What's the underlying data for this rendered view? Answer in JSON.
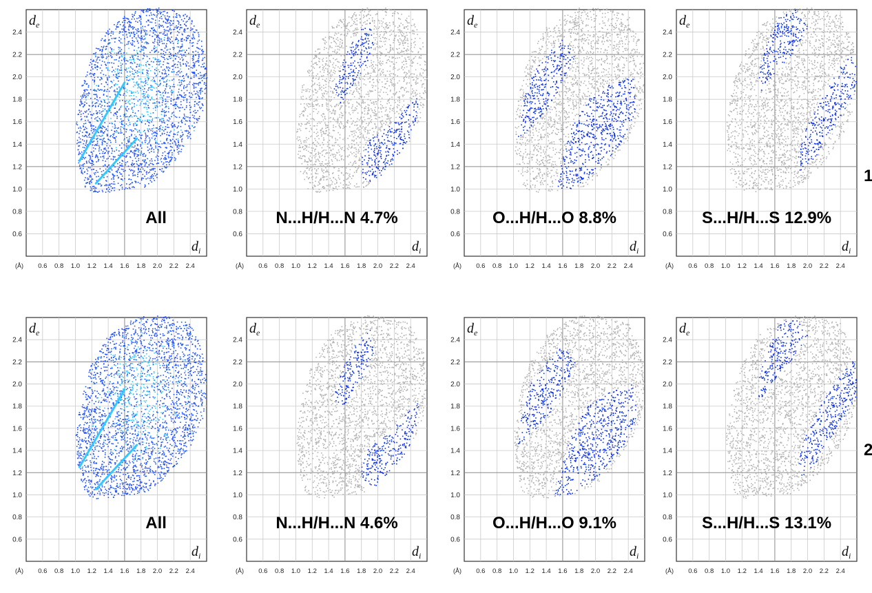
{
  "figure": {
    "y_axis_name": "d",
    "y_axis_sub": "e",
    "x_axis_name": "d",
    "x_axis_sub": "i",
    "unit_label": "(Å)",
    "x_ticks": [
      "0.6",
      "0.8",
      "1.0",
      "1.2",
      "1.4",
      "1.6",
      "1.8",
      "2.0",
      "2.2",
      "2.4"
    ],
    "y_ticks": [
      "0.6",
      "0.8",
      "1.0",
      "1.2",
      "1.4",
      "1.6",
      "1.8",
      "2.0",
      "2.2",
      "2.4"
    ],
    "colors": {
      "all": "#1f4fff",
      "highlight": "#0a2ee8",
      "background": "#b4b4b4",
      "dense": "#35c8ff"
    }
  },
  "rows": [
    {
      "label": "1",
      "panels": [
        {
          "caption": "All"
        },
        {
          "caption": "N...H/H...N 4.7%"
        },
        {
          "caption": "O...H/H...O 8.8%"
        },
        {
          "caption": "S...H/H...S 12.9%"
        }
      ]
    },
    {
      "label": "2",
      "panels": [
        {
          "caption": "All"
        },
        {
          "caption": "N...H/H...N 4.6%"
        },
        {
          "caption": "O...H/H...O 9.1%"
        },
        {
          "caption": "S...H/H...S 13.1%"
        }
      ]
    }
  ],
  "chart_data": [
    {
      "type": "scatter",
      "title": "All",
      "xlabel": "di",
      "ylabel": "de",
      "xlim": [
        0.4,
        2.6
      ],
      "ylim": [
        0.4,
        2.6
      ],
      "contact": "all",
      "compound": "1",
      "percent": null
    },
    {
      "type": "scatter",
      "title": "N...H/H...N 4.7%",
      "xlabel": "di",
      "ylabel": "de",
      "xlim": [
        0.4,
        2.6
      ],
      "ylim": [
        0.4,
        2.6
      ],
      "contact": "N...H/H...N",
      "compound": "1",
      "percent": 4.7
    },
    {
      "type": "scatter",
      "title": "O...H/H...O 8.8%",
      "xlabel": "di",
      "ylabel": "de",
      "xlim": [
        0.4,
        2.6
      ],
      "ylim": [
        0.4,
        2.6
      ],
      "contact": "O...H/H...O",
      "compound": "1",
      "percent": 8.8
    },
    {
      "type": "scatter",
      "title": "S...H/H...S 12.9%",
      "xlabel": "di",
      "ylabel": "de",
      "xlim": [
        0.4,
        2.6
      ],
      "ylim": [
        0.4,
        2.6
      ],
      "contact": "S...H/H...S",
      "compound": "1",
      "percent": 12.9
    },
    {
      "type": "scatter",
      "title": "All",
      "xlabel": "di",
      "ylabel": "de",
      "xlim": [
        0.4,
        2.6
      ],
      "ylim": [
        0.4,
        2.6
      ],
      "contact": "all",
      "compound": "2",
      "percent": null
    },
    {
      "type": "scatter",
      "title": "N...H/H...N 4.6%",
      "xlabel": "di",
      "ylabel": "de",
      "xlim": [
        0.4,
        2.6
      ],
      "ylim": [
        0.4,
        2.6
      ],
      "contact": "N...H/H...N",
      "compound": "2",
      "percent": 4.6
    },
    {
      "type": "scatter",
      "title": "O...H/H...O 9.1%",
      "xlabel": "di",
      "ylabel": "de",
      "xlim": [
        0.4,
        2.6
      ],
      "ylim": [
        0.4,
        2.6
      ],
      "contact": "O...H/H...O",
      "compound": "2",
      "percent": 9.1
    },
    {
      "type": "scatter",
      "title": "S...H/H...S 13.1%",
      "xlabel": "di",
      "ylabel": "de",
      "xlim": [
        0.4,
        2.6
      ],
      "ylim": [
        0.4,
        2.6
      ],
      "contact": "S...H/H...S",
      "compound": "2",
      "percent": 13.1
    }
  ]
}
